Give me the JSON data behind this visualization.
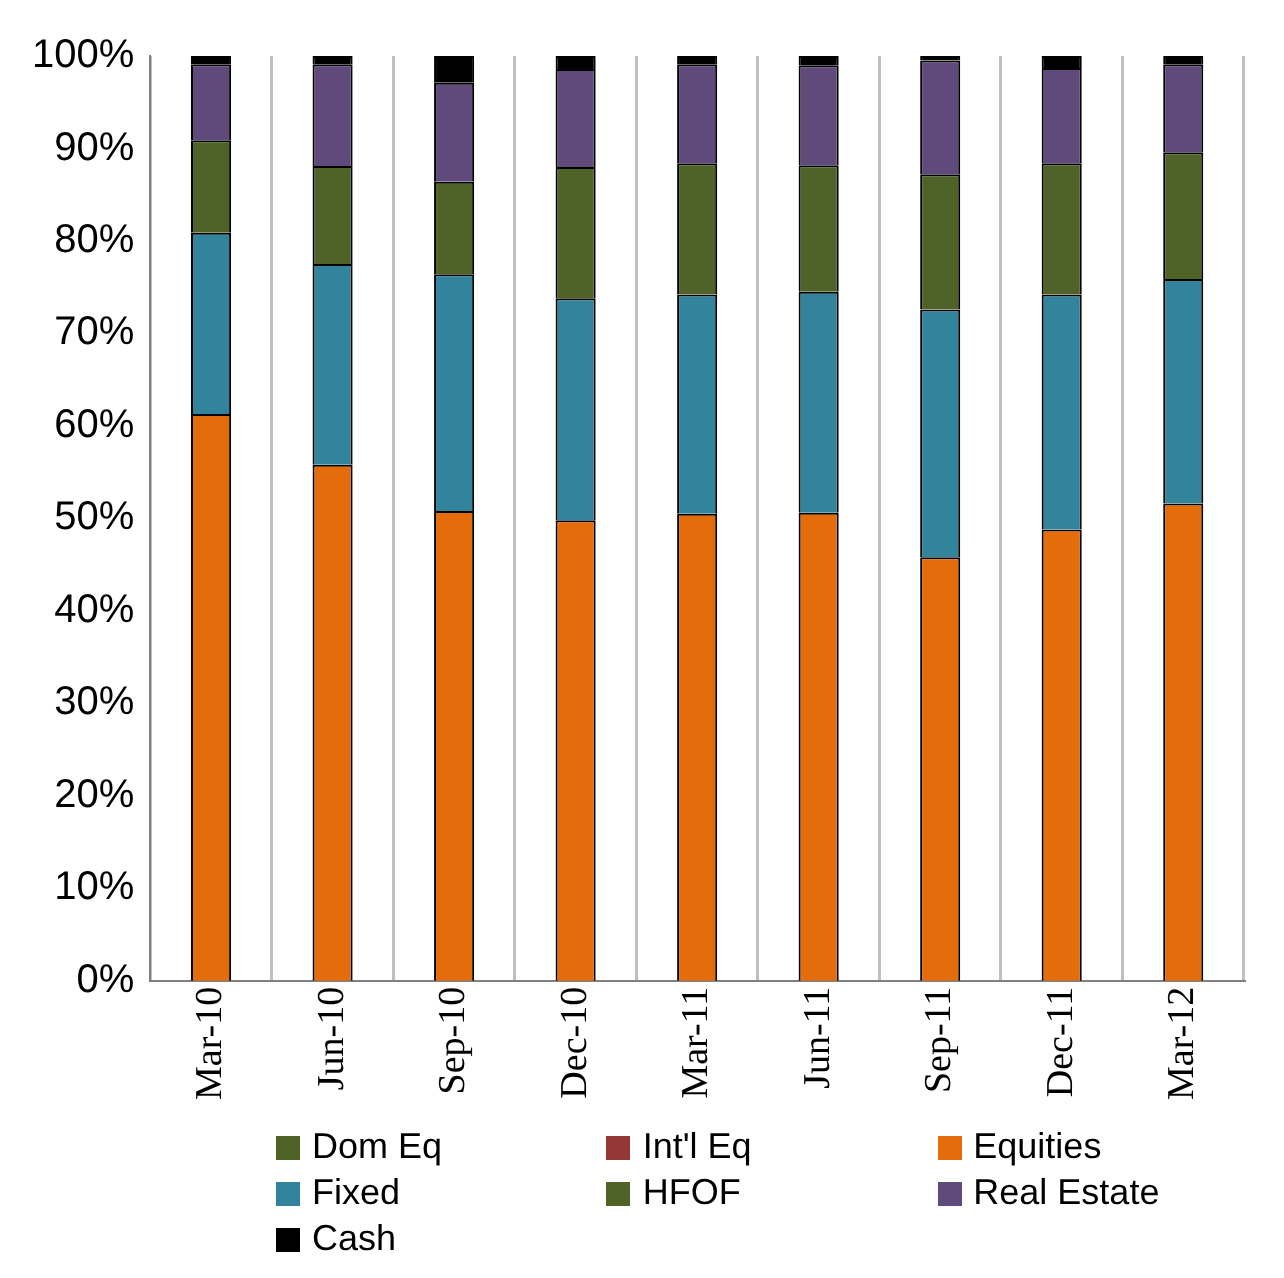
{
  "chart_data": {
    "type": "bar",
    "stacked": true,
    "categories": [
      "Mar-10",
      "Jun-10",
      "Sep-10",
      "Dec-10",
      "Mar-11",
      "Jun-11",
      "Sep-11",
      "Dec-11",
      "Mar-12"
    ],
    "series": [
      {
        "name": "Dom Eq",
        "color": "#4f6228",
        "values": [
          null,
          null,
          null,
          null,
          null,
          null,
          null,
          null,
          null
        ]
      },
      {
        "name": "Int'l Eq",
        "color": "#953735",
        "values": [
          null,
          null,
          null,
          null,
          null,
          null,
          null,
          null,
          null
        ]
      },
      {
        "name": "Equities",
        "color": "#e46c0a",
        "values": [
          61.3,
          55.8,
          50.8,
          49.8,
          50.5,
          50.6,
          45.8,
          48.8,
          51.6
        ]
      },
      {
        "name": "Fixed",
        "color": "#31849b",
        "values": [
          19.6,
          21.7,
          25.6,
          24.0,
          23.7,
          23.9,
          26.8,
          25.4,
          24.3
        ]
      },
      {
        "name": "HFOF",
        "color": "#4f6228",
        "values": [
          10.0,
          10.6,
          10.0,
          14.2,
          14.2,
          13.7,
          14.6,
          14.2,
          13.7
        ]
      },
      {
        "name": "Real Estate",
        "color": "#604a7b",
        "values": [
          8.2,
          11.0,
          10.7,
          10.6,
          10.7,
          10.8,
          12.3,
          10.3,
          9.5
        ]
      },
      {
        "name": "Cash",
        "color": "#000000",
        "values": [
          0.9,
          0.9,
          2.9,
          1.4,
          0.9,
          1.0,
          0.5,
          1.3,
          0.9
        ]
      }
    ],
    "ylim": [
      0,
      100
    ],
    "yticks": [
      {
        "value": 0,
        "label": "0%"
      },
      {
        "value": 10,
        "label": "10%"
      },
      {
        "value": 20,
        "label": "20%"
      },
      {
        "value": 30,
        "label": "30%"
      },
      {
        "value": 40,
        "label": "40%"
      },
      {
        "value": 50,
        "label": "50%"
      },
      {
        "value": 60,
        "label": "60%"
      },
      {
        "value": 70,
        "label": "70%"
      },
      {
        "value": 80,
        "label": "80%"
      },
      {
        "value": 90,
        "label": "90%"
      },
      {
        "value": 100,
        "label": "100%"
      }
    ],
    "grid": "x",
    "legend": "bottom"
  }
}
